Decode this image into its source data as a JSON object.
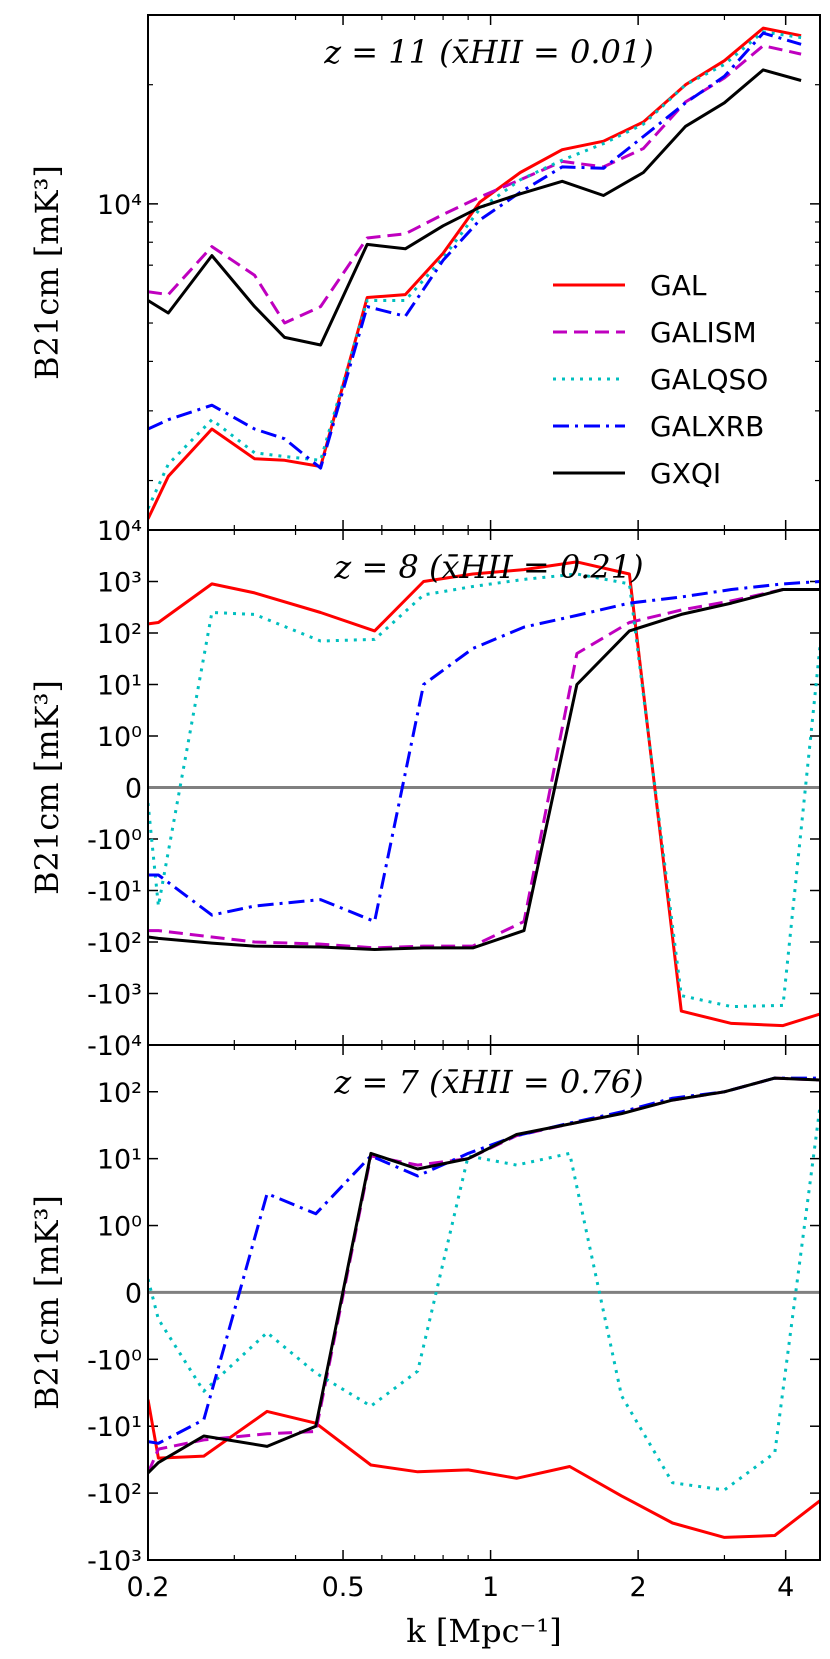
{
  "figure": {
    "xlabel": "k [Mpc⁻¹]",
    "x_ticks": [
      {
        "value": 0.2,
        "label": "0.2"
      },
      {
        "value": 0.5,
        "label": "0.5"
      },
      {
        "value": 1,
        "label": "1"
      },
      {
        "value": 2,
        "label": "2"
      },
      {
        "value": 4,
        "label": "4"
      }
    ],
    "ylabel": "B21cm [mK³]",
    "colors": {
      "GAL": "#ff0000",
      "GALISM": "#bf00bf",
      "GALQSO": "#00bfbf",
      "GALXRB": "#0000ff",
      "GXQI": "#000000",
      "zero_line": "#808080"
    },
    "dash": {
      "GAL": "",
      "GALISM": "14,7",
      "GALQSO": "3,6",
      "GALXRB": "16,6,3,6",
      "GXQI": ""
    },
    "legend": {
      "placement": "right",
      "entries": [
        "GAL",
        "GALISM",
        "GALQSO",
        "GALXRB",
        "GXQI"
      ]
    }
  },
  "chart_data": [
    {
      "type": "line",
      "title": "z = 11 (x̄HII = 0.01)",
      "xscale": "log",
      "yscale": "log",
      "xlim": [
        0.2,
        4.7
      ],
      "ylim": [
        1500,
        30000
      ],
      "y_ticks": [
        {
          "value": 10000,
          "label": "10⁴"
        }
      ],
      "x": [
        0.2,
        0.22,
        0.27,
        0.33,
        0.38,
        0.45,
        0.56,
        0.67,
        0.8,
        0.95,
        1.15,
        1.4,
        1.7,
        2.05,
        2.5,
        3.0,
        3.6,
        4.3
      ],
      "series": [
        {
          "name": "GAL",
          "values": [
            1600,
            2050,
            2700,
            2270,
            2250,
            2170,
            5800,
            5900,
            7500,
            10100,
            12000,
            13700,
            14400,
            16100,
            20000,
            23000,
            27800,
            26600
          ]
        },
        {
          "name": "GALISM",
          "values": [
            6000,
            5900,
            7800,
            6600,
            5000,
            5500,
            8200,
            8400,
            9400,
            10400,
            11500,
            12800,
            12400,
            13800,
            18100,
            20800,
            25100,
            23900
          ]
        },
        {
          "name": "GALQSO",
          "values": [
            1700,
            2200,
            2850,
            2350,
            2300,
            2250,
            5700,
            5700,
            7300,
            9700,
            11500,
            12900,
            14200,
            15900,
            20000,
            22500,
            27200,
            26300
          ]
        },
        {
          "name": "GALXRB",
          "values": [
            2700,
            2850,
            3100,
            2700,
            2550,
            2150,
            5500,
            5200,
            7200,
            9100,
            10700,
            12400,
            12300,
            14800,
            18000,
            21000,
            27000,
            25300
          ]
        },
        {
          "name": "GXQI",
          "values": [
            5700,
            5300,
            7400,
            5500,
            4600,
            4400,
            7900,
            7700,
            8800,
            9800,
            10600,
            11400,
            10500,
            12000,
            15700,
            18000,
            21800,
            20500
          ]
        }
      ]
    },
    {
      "type": "line",
      "title": "z = 8 (x̄HII = 0.21)",
      "xscale": "log",
      "yscale": "symlog",
      "xlim": [
        0.2,
        4.7
      ],
      "ylim": [
        -10000,
        10000
      ],
      "y_ticks": [
        {
          "value": 10000,
          "label": "10⁴"
        },
        {
          "value": 1000,
          "label": "10³"
        },
        {
          "value": 100,
          "label": "10²"
        },
        {
          "value": 10,
          "label": "10¹"
        },
        {
          "value": 1,
          "label": "10⁰"
        },
        {
          "value": 0,
          "label": "0"
        },
        {
          "value": -1,
          "label": "-10⁰"
        },
        {
          "value": -10,
          "label": "-10¹"
        },
        {
          "value": -100,
          "label": "-10²"
        },
        {
          "value": -1000,
          "label": "-10³"
        },
        {
          "value": -10000,
          "label": "-10⁴"
        }
      ],
      "x": [
        0.2,
        0.21,
        0.27,
        0.33,
        0.45,
        0.58,
        0.73,
        0.92,
        1.17,
        1.5,
        1.92,
        2.45,
        3.1,
        3.95,
        4.7
      ],
      "series": [
        {
          "name": "GAL",
          "values": [
            150,
            160,
            900,
            600,
            250,
            110,
            1000,
            1400,
            1700,
            2400,
            1400,
            -2200,
            -3800,
            -4200,
            -2500
          ]
        },
        {
          "name": "GALISM",
          "values": [
            -60,
            -60,
            -80,
            -100,
            -110,
            -130,
            -120,
            -120,
            -40,
            40,
            160,
            280,
            420,
            700,
            700
          ]
        },
        {
          "name": "GALQSO",
          "values": [
            -0.3,
            -20,
            250,
            230,
            70,
            75,
            550,
            800,
            1100,
            1400,
            900,
            -1100,
            -1800,
            -1700,
            55
          ]
        },
        {
          "name": "GALXRB",
          "values": [
            -5,
            -5,
            -30,
            -20,
            -15,
            -40,
            10,
            50,
            130,
            220,
            380,
            500,
            700,
            900,
            1000
          ]
        },
        {
          "name": "GXQI",
          "values": [
            -80,
            -85,
            -105,
            -120,
            -125,
            -140,
            -130,
            -130,
            -60,
            10,
            110,
            230,
            380,
            700,
            700
          ]
        }
      ]
    },
    {
      "type": "line",
      "title": "z = 7 (x̄HII = 0.76)",
      "xscale": "log",
      "yscale": "symlog",
      "xlim": [
        0.2,
        4.7
      ],
      "ylim": [
        -1000,
        500
      ],
      "y_ticks": [
        {
          "value": 100,
          "label": "10²"
        },
        {
          "value": 10,
          "label": "10¹"
        },
        {
          "value": 1,
          "label": "10⁰"
        },
        {
          "value": 0,
          "label": "0"
        },
        {
          "value": -1,
          "label": "-10⁰"
        },
        {
          "value": -10,
          "label": "-10¹"
        },
        {
          "value": -100,
          "label": "-10²"
        },
        {
          "value": -1000,
          "label": "-10³"
        }
      ],
      "x": [
        0.2,
        0.21,
        0.26,
        0.35,
        0.44,
        0.57,
        0.71,
        0.9,
        1.13,
        1.45,
        1.85,
        2.35,
        3.0,
        3.8,
        4.7
      ],
      "series": [
        {
          "name": "GAL",
          "values": [
            -4,
            -30,
            -28,
            -6,
            -9,
            -38,
            -48,
            -45,
            -60,
            -40,
            -110,
            -280,
            -460,
            -430,
            -130
          ]
        },
        {
          "name": "GALISM",
          "values": [
            -50,
            -22,
            -16,
            -13,
            -12,
            11,
            8,
            10,
            22,
            33,
            48,
            75,
            100,
            160,
            150
          ]
        },
        {
          "name": "GALQSO",
          "values": [
            0.2,
            -0.4,
            -3,
            -0.6,
            -1.6,
            -5,
            -1.5,
            11,
            8,
            12,
            -3.5,
            -70,
            -90,
            -25,
            60
          ]
        },
        {
          "name": "GALXRB",
          "values": [
            -17,
            -18,
            -8,
            3,
            1.5,
            11,
            5.5,
            12,
            22,
            34,
            50,
            80,
            100,
            160,
            160
          ]
        },
        {
          "name": "GXQI",
          "values": [
            -50,
            -35,
            -14,
            -20,
            -10,
            12,
            7,
            10,
            23,
            33,
            47,
            75,
            100,
            160,
            150
          ]
        }
      ]
    }
  ]
}
